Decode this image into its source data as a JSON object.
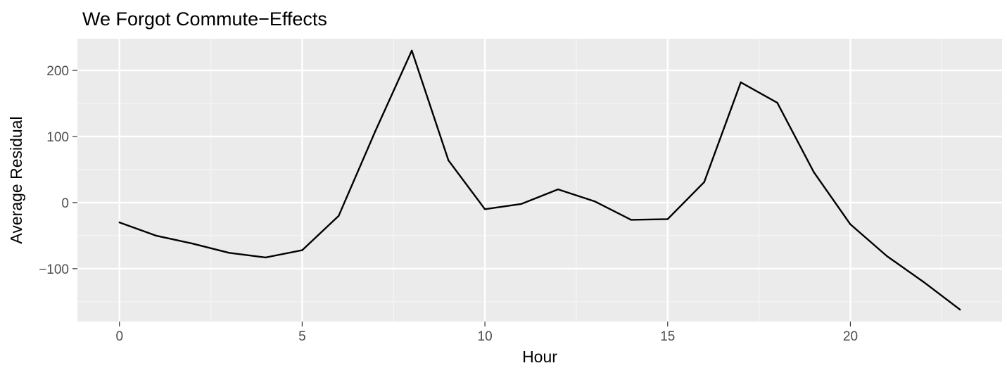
{
  "chart_data": {
    "type": "line",
    "title": "We Forgot Commute−Effects",
    "xlabel": "Hour",
    "ylabel": "Average Residual",
    "xlim": [
      -1.15,
      24.15
    ],
    "ylim": [
      -180,
      248
    ],
    "x_ticks": [
      0,
      5,
      10,
      15,
      20
    ],
    "x_tick_labels": [
      "0",
      "5",
      "10",
      "15",
      "20"
    ],
    "y_ticks": [
      -100,
      0,
      100,
      200
    ],
    "y_tick_labels": [
      "−100",
      "0",
      "100",
      "200"
    ],
    "x_minor_ticks": [
      2.5,
      7.5,
      12.5,
      17.5,
      22.5
    ],
    "y_minor_ticks": [
      -150,
      -50,
      50,
      150
    ],
    "grid": true,
    "legend": "none",
    "colors": {
      "panel_background": "#ebebeb",
      "grid_major": "#ffffff",
      "grid_minor": "#f5f5f5",
      "line": "#000000",
      "tick_text": "#4d4d4d",
      "tick_mark": "#333333"
    },
    "series": [
      {
        "x": [
          0,
          1,
          2,
          3,
          4,
          5,
          6,
          7,
          8,
          9,
          10,
          11,
          12,
          13,
          14,
          15,
          16,
          17,
          18,
          19,
          20,
          21,
          22,
          23
        ],
        "y": [
          -30,
          -50,
          -62,
          -76,
          -83,
          -72,
          -20,
          108,
          230,
          64,
          -10,
          -2,
          20,
          2,
          -26,
          -25,
          31,
          182,
          151,
          46,
          -33,
          -81,
          -120,
          -162
        ]
      }
    ]
  }
}
